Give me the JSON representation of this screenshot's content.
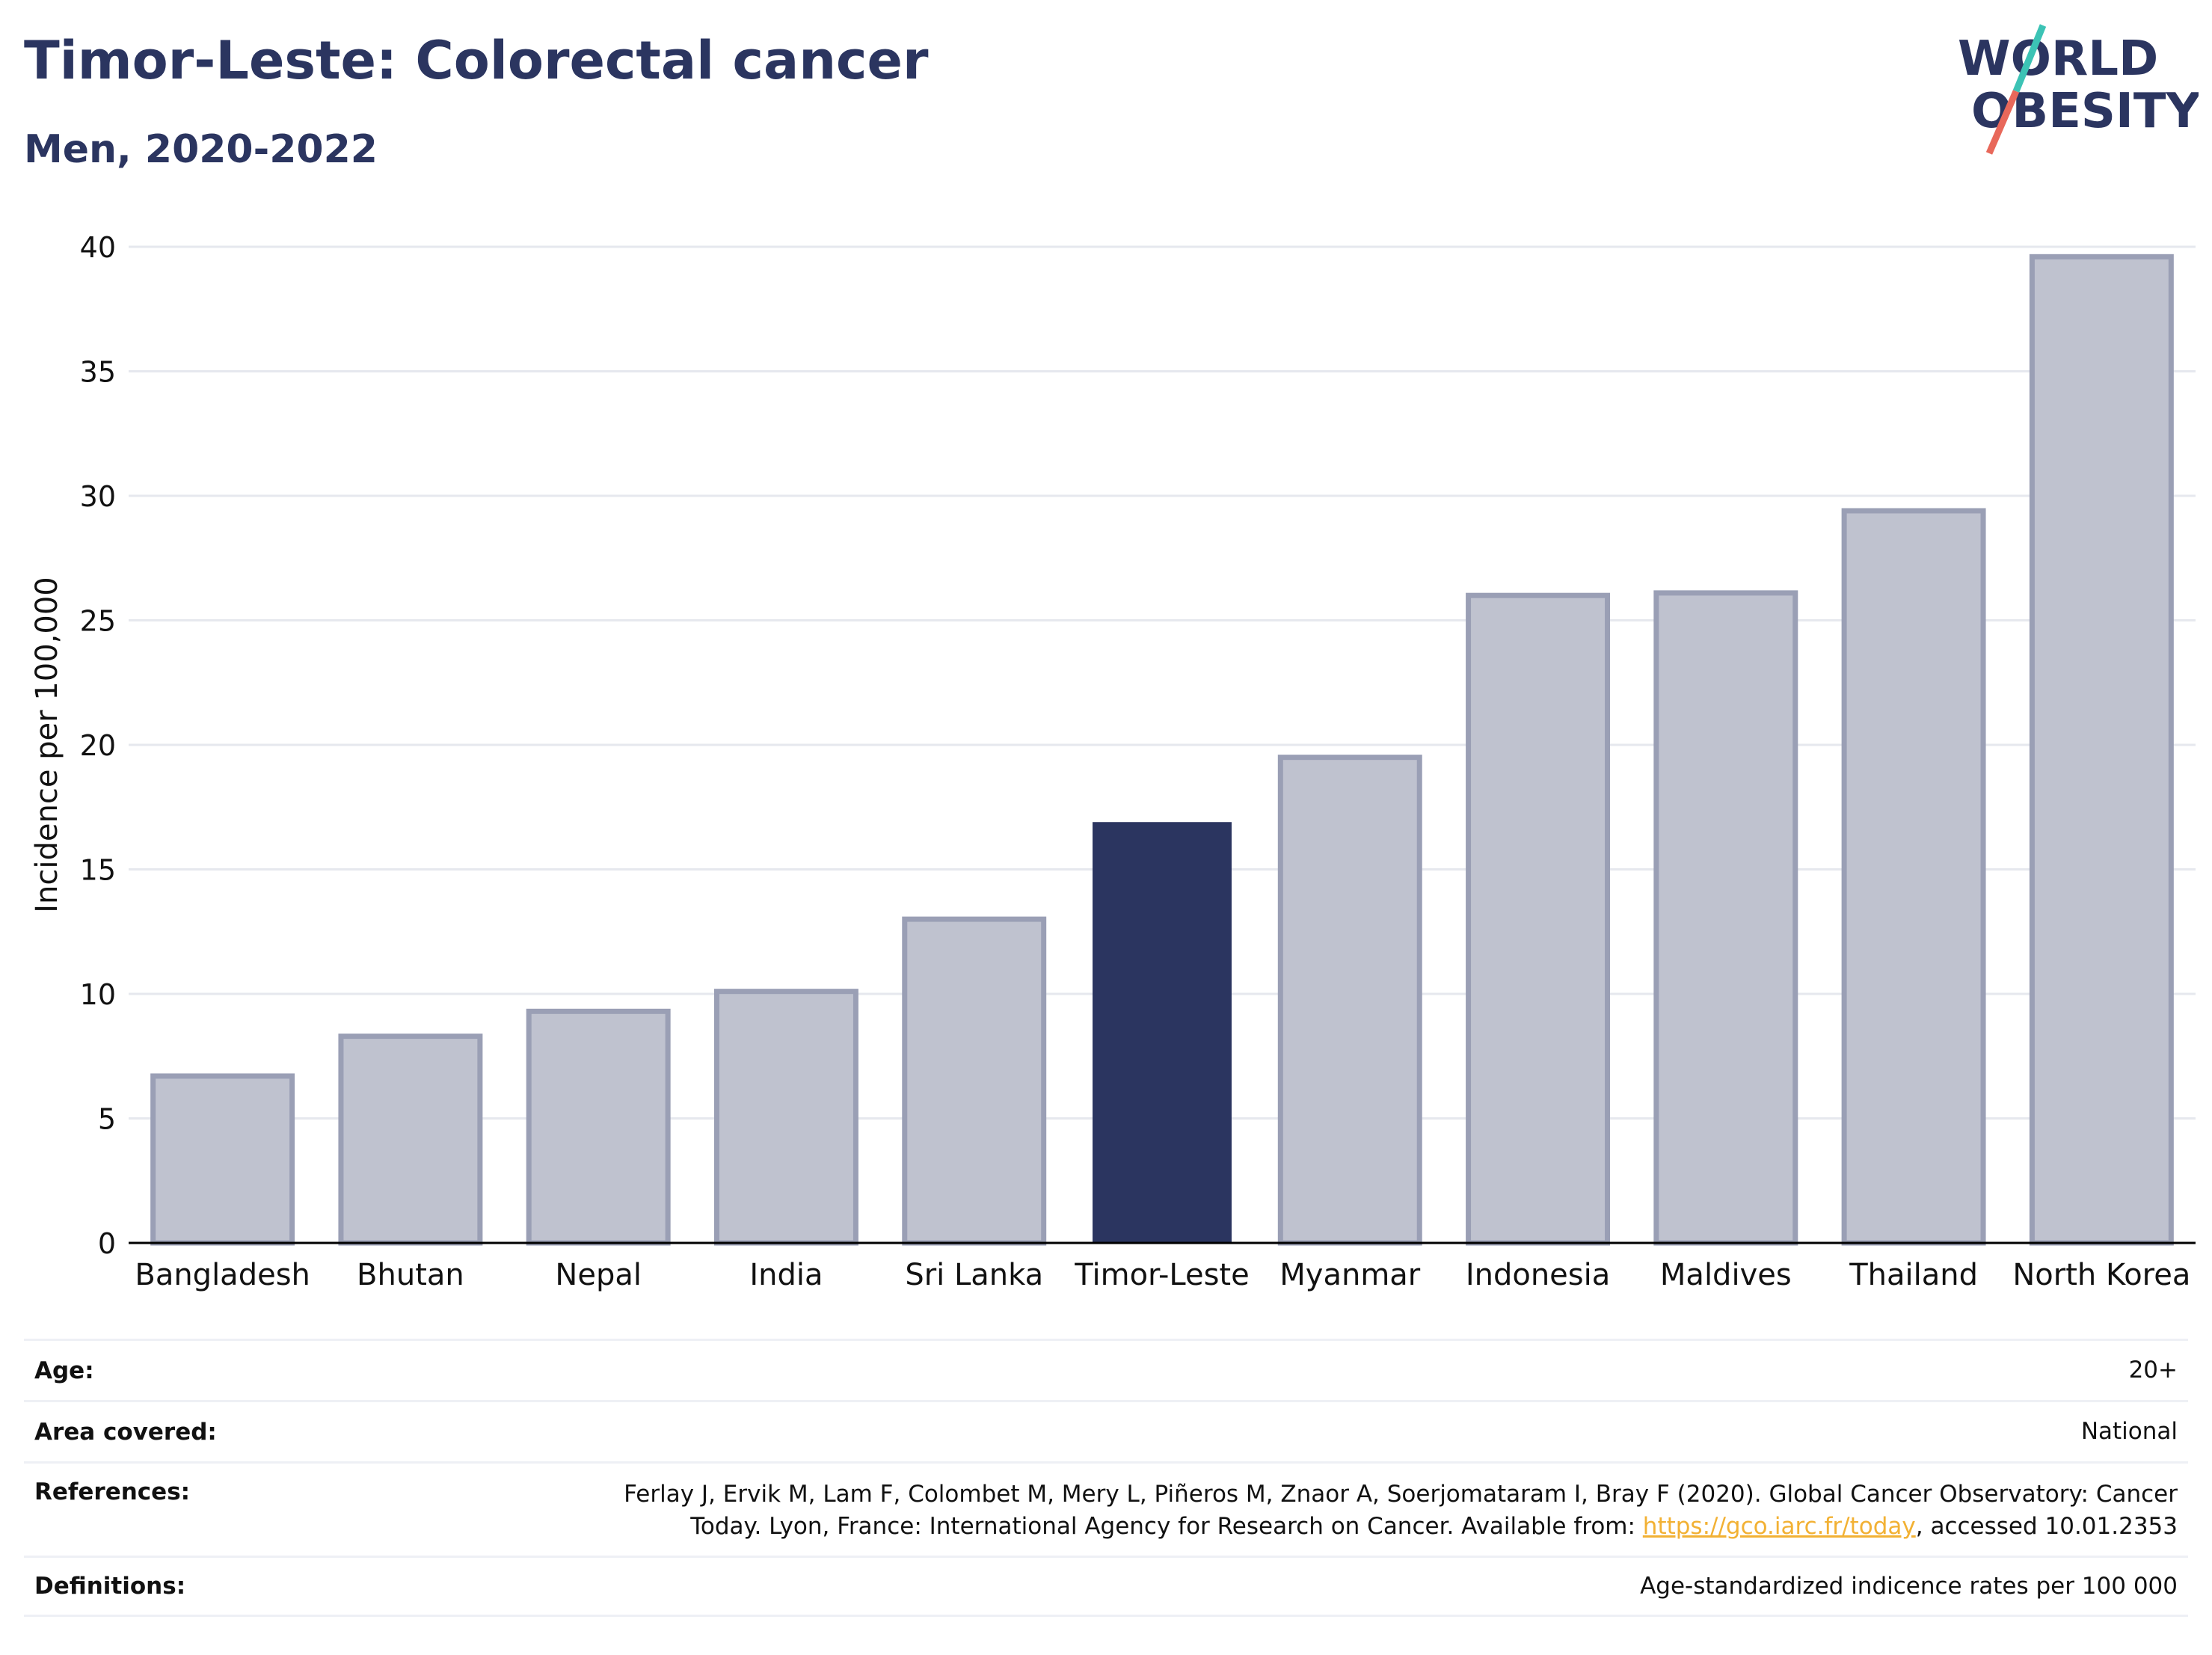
{
  "header": {
    "title": "Timor-Leste: Colorectal cancer",
    "subtitle": "Men, 2020-2022"
  },
  "logo": {
    "line1": "WORLD",
    "line2": "OBESITY",
    "text_color": "#2b3560",
    "slash_colors": [
      "#3cc3b5",
      "#e8685a"
    ]
  },
  "colors": {
    "highlight": "#2b3560",
    "bar_fill": "#bfc2cf",
    "bar_stroke": "#9a9fb5",
    "grid": "#e6e8ee",
    "axis": "#000000"
  },
  "chart_data": {
    "type": "bar",
    "title": "Timor-Leste: Colorectal cancer",
    "subtitle": "Men, 2020-2022",
    "xlabel": "",
    "ylabel": "Incidence per 100,000",
    "categories": [
      "Bangladesh",
      "Bhutan",
      "Nepal",
      "India",
      "Sri Lanka",
      "Timor-Leste",
      "Myanmar",
      "Indonesia",
      "Maldives",
      "Thailand",
      "North Korea"
    ],
    "values": [
      6.7,
      8.3,
      9.3,
      10.1,
      13.0,
      16.9,
      19.5,
      26.0,
      26.1,
      29.4,
      39.6
    ],
    "highlight": "Timor-Leste",
    "ylim": [
      0,
      40
    ],
    "yticks": [
      0,
      5,
      10,
      15,
      20,
      25,
      30,
      35,
      40
    ],
    "grid": true,
    "legend": "none"
  },
  "info": {
    "age_label": "Age:",
    "age_value": "20+",
    "area_label": "Area covered:",
    "area_value": "National",
    "refs_label": "References:",
    "refs_text_1": "Ferlay J, Ervik M, Lam F, Colombet M, Mery L, Piñeros M, Znaor A, Soerjomataram I, Bray F (2020). Global Cancer Observatory: Cancer",
    "refs_text_2a": "Today. Lyon, France: International Agency for Research on Cancer. Available from: ",
    "refs_link": "https://gco.iarc.fr/today",
    "refs_text_2b": ", accessed 10.01.2353",
    "defs_label": "Definitions:",
    "defs_value": "Age-standardized indicence rates per 100 000"
  }
}
